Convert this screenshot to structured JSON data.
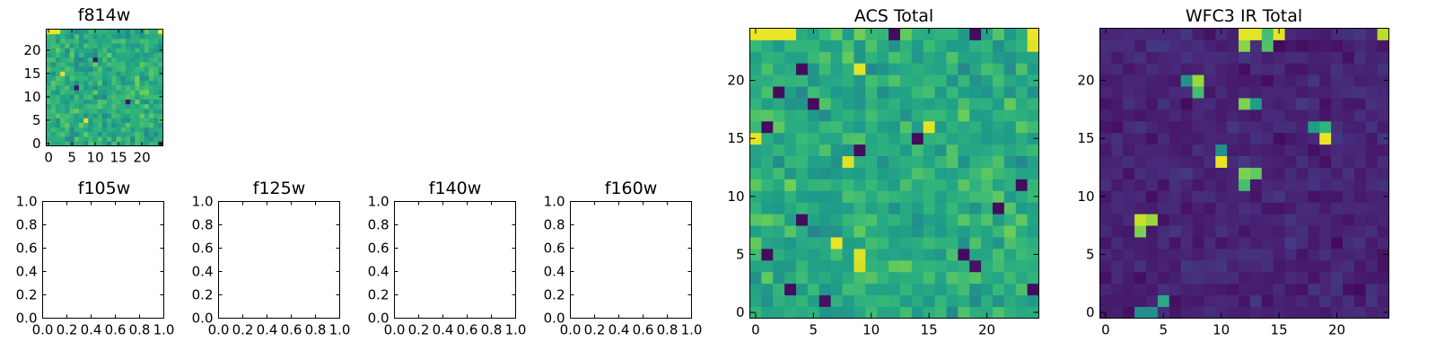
{
  "figure": {
    "colormap": "viridis",
    "background": "#ffffff",
    "frame_color": "#000000"
  },
  "chart_data": [
    {
      "type": "heatmap",
      "title": "f814w",
      "rows": 25,
      "cols": 25,
      "xlim": [
        -0.5,
        24.5
      ],
      "ylim": [
        -0.5,
        24.5
      ],
      "xticks": [
        0,
        5,
        10,
        15,
        20
      ],
      "yticks": [
        0,
        5,
        10,
        15,
        20
      ],
      "xtick_labels": [
        "0",
        "5",
        "10",
        "15",
        "20"
      ],
      "ytick_labels": [
        "0",
        "5",
        "10",
        "15",
        "20"
      ],
      "base_level": 0.62,
      "noise": 0.18,
      "hot_pixels": [
        {
          "x": 0,
          "y": 24,
          "value": 0.97
        },
        {
          "x": 1,
          "y": 24,
          "value": 0.97
        },
        {
          "x": 2,
          "y": 24,
          "value": 0.97
        },
        {
          "x": 24,
          "y": 24,
          "value": 0.97
        },
        {
          "x": 8,
          "y": 5,
          "value": 0.95
        },
        {
          "x": 3,
          "y": 15,
          "value": 0.95
        }
      ],
      "cold_pixels": [
        {
          "x": 24,
          "y": 0,
          "value": 0.05
        },
        {
          "x": 10,
          "y": 18,
          "value": 0.05
        },
        {
          "x": 6,
          "y": 12,
          "value": 0.05
        },
        {
          "x": 17,
          "y": 9,
          "value": 0.05
        }
      ]
    },
    {
      "type": "heatmap",
      "title": "f105w",
      "empty": true,
      "xlim": [
        0.0,
        1.0
      ],
      "ylim": [
        0.0,
        1.0
      ],
      "xticks": [
        0.0,
        0.2,
        0.4,
        0.6,
        0.8,
        1.0
      ],
      "yticks": [
        0.0,
        0.2,
        0.4,
        0.6,
        0.8,
        1.0
      ],
      "xtick_labels": [
        "0.0",
        "0.2",
        "0.4",
        "0.6",
        "0.8",
        "1.0"
      ],
      "ytick_labels": [
        "0.0",
        "0.2",
        "0.4",
        "0.6",
        "0.8",
        "1.0"
      ]
    },
    {
      "type": "heatmap",
      "title": "f125w",
      "empty": true,
      "xlim": [
        0.0,
        1.0
      ],
      "ylim": [
        0.0,
        1.0
      ],
      "xticks": [
        0.0,
        0.2,
        0.4,
        0.6,
        0.8,
        1.0
      ],
      "yticks": [
        0.0,
        0.2,
        0.4,
        0.6,
        0.8,
        1.0
      ],
      "xtick_labels": [
        "0.0",
        "0.2",
        "0.4",
        "0.6",
        "0.8",
        "1.0"
      ],
      "ytick_labels": [
        "0.0",
        "0.2",
        "0.4",
        "0.6",
        "0.8",
        "1.0"
      ]
    },
    {
      "type": "heatmap",
      "title": "f140w",
      "empty": true,
      "xlim": [
        0.0,
        1.0
      ],
      "ylim": [
        0.0,
        1.0
      ],
      "xticks": [
        0.0,
        0.2,
        0.4,
        0.6,
        0.8,
        1.0
      ],
      "yticks": [
        0.0,
        0.2,
        0.4,
        0.6,
        0.8,
        1.0
      ],
      "xtick_labels": [
        "0.0",
        "0.2",
        "0.4",
        "0.6",
        "0.8",
        "1.0"
      ],
      "ytick_labels": [
        "0.0",
        "0.2",
        "0.4",
        "0.6",
        "0.8",
        "1.0"
      ]
    },
    {
      "type": "heatmap",
      "title": "f160w",
      "empty": true,
      "xlim": [
        0.0,
        1.0
      ],
      "ylim": [
        0.0,
        1.0
      ],
      "xticks": [
        0.0,
        0.2,
        0.4,
        0.6,
        0.8,
        1.0
      ],
      "yticks": [
        0.0,
        0.2,
        0.4,
        0.6,
        0.8,
        1.0
      ],
      "xtick_labels": [
        "0.0",
        "0.2",
        "0.4",
        "0.6",
        "0.8",
        "1.0"
      ],
      "ytick_labels": [
        "0.0",
        "0.2",
        "0.4",
        "0.6",
        "0.8",
        "1.0"
      ]
    },
    {
      "type": "heatmap",
      "title": "ACS Total",
      "rows": 25,
      "cols": 25,
      "xlim": [
        -0.5,
        24.5
      ],
      "ylim": [
        -0.5,
        24.5
      ],
      "xticks": [
        0,
        5,
        10,
        15,
        20
      ],
      "yticks": [
        0,
        5,
        10,
        15,
        20
      ],
      "xtick_labels": [
        "0",
        "5",
        "10",
        "15",
        "20"
      ],
      "ytick_labels": [
        "0",
        "5",
        "10",
        "15",
        "20"
      ],
      "base_level": 0.62,
      "noise": 0.18,
      "hot_pixels": [
        {
          "x": 0,
          "y": 24,
          "value": 0.97
        },
        {
          "x": 1,
          "y": 24,
          "value": 0.97
        },
        {
          "x": 2,
          "y": 24,
          "value": 0.97
        },
        {
          "x": 3,
          "y": 24,
          "value": 0.97
        },
        {
          "x": 24,
          "y": 24,
          "value": 0.97
        },
        {
          "x": 24,
          "y": 23,
          "value": 0.95
        },
        {
          "x": 0,
          "y": 15,
          "value": 0.96
        },
        {
          "x": 15,
          "y": 16,
          "value": 0.96
        },
        {
          "x": 9,
          "y": 21,
          "value": 0.96
        },
        {
          "x": 8,
          "y": 13,
          "value": 0.95
        },
        {
          "x": 7,
          "y": 6,
          "value": 0.97
        },
        {
          "x": 9,
          "y": 5,
          "value": 0.95
        },
        {
          "x": 9,
          "y": 4,
          "value": 0.94
        }
      ],
      "cold_pixels": [
        {
          "x": 4,
          "y": 21,
          "value": 0.03
        },
        {
          "x": 2,
          "y": 19,
          "value": 0.03
        },
        {
          "x": 5,
          "y": 18,
          "value": 0.03
        },
        {
          "x": 1,
          "y": 16,
          "value": 0.03
        },
        {
          "x": 14,
          "y": 15,
          "value": 0.03
        },
        {
          "x": 9,
          "y": 14,
          "value": 0.03
        },
        {
          "x": 23,
          "y": 11,
          "value": 0.03
        },
        {
          "x": 21,
          "y": 9,
          "value": 0.03
        },
        {
          "x": 4,
          "y": 8,
          "value": 0.03
        },
        {
          "x": 1,
          "y": 5,
          "value": 0.03
        },
        {
          "x": 18,
          "y": 5,
          "value": 0.03
        },
        {
          "x": 19,
          "y": 4,
          "value": 0.05
        },
        {
          "x": 3,
          "y": 2,
          "value": 0.03
        },
        {
          "x": 24,
          "y": 2,
          "value": 0.03
        },
        {
          "x": 6,
          "y": 1,
          "value": 0.05
        },
        {
          "x": 12,
          "y": 24,
          "value": 0.03
        },
        {
          "x": 19,
          "y": 24,
          "value": 0.03
        }
      ]
    },
    {
      "type": "heatmap",
      "title": "WFC3 IR Total",
      "rows": 25,
      "cols": 25,
      "xlim": [
        -0.5,
        24.5
      ],
      "ylim": [
        -0.5,
        24.5
      ],
      "xticks": [
        0,
        5,
        10,
        15,
        20
      ],
      "yticks": [
        0,
        5,
        10,
        15,
        20
      ],
      "xtick_labels": [
        "0",
        "5",
        "10",
        "15",
        "20"
      ],
      "ytick_labels": [
        "0",
        "5",
        "10",
        "15",
        "20"
      ],
      "base_level": 0.1,
      "noise": 0.08,
      "hot_pixels": [
        {
          "x": 12,
          "y": 24,
          "value": 0.96
        },
        {
          "x": 13,
          "y": 24,
          "value": 0.96
        },
        {
          "x": 15,
          "y": 24,
          "value": 0.96
        },
        {
          "x": 14,
          "y": 24,
          "value": 0.7
        },
        {
          "x": 12,
          "y": 23,
          "value": 0.82
        },
        {
          "x": 14,
          "y": 23,
          "value": 0.72
        },
        {
          "x": 24,
          "y": 24,
          "value": 0.9
        },
        {
          "x": 8,
          "y": 20,
          "value": 0.85
        },
        {
          "x": 8,
          "y": 19,
          "value": 0.7
        },
        {
          "x": 7,
          "y": 20,
          "value": 0.5
        },
        {
          "x": 12,
          "y": 18,
          "value": 0.8
        },
        {
          "x": 13,
          "y": 18,
          "value": 0.55
        },
        {
          "x": 19,
          "y": 15,
          "value": 0.97
        },
        {
          "x": 18,
          "y": 16,
          "value": 0.55
        },
        {
          "x": 19,
          "y": 16,
          "value": 0.65
        },
        {
          "x": 10,
          "y": 13,
          "value": 0.97
        },
        {
          "x": 10,
          "y": 14,
          "value": 0.5
        },
        {
          "x": 12,
          "y": 12,
          "value": 0.8
        },
        {
          "x": 13,
          "y": 12,
          "value": 0.75
        },
        {
          "x": 12,
          "y": 11,
          "value": 0.7
        },
        {
          "x": 3,
          "y": 8,
          "value": 0.92
        },
        {
          "x": 4,
          "y": 8,
          "value": 0.85
        },
        {
          "x": 3,
          "y": 7,
          "value": 0.8
        },
        {
          "x": 5,
          "y": 1,
          "value": 0.6
        },
        {
          "x": 3,
          "y": 0,
          "value": 0.5
        },
        {
          "x": 4,
          "y": 0,
          "value": 0.5
        }
      ],
      "cold_pixels": []
    }
  ]
}
